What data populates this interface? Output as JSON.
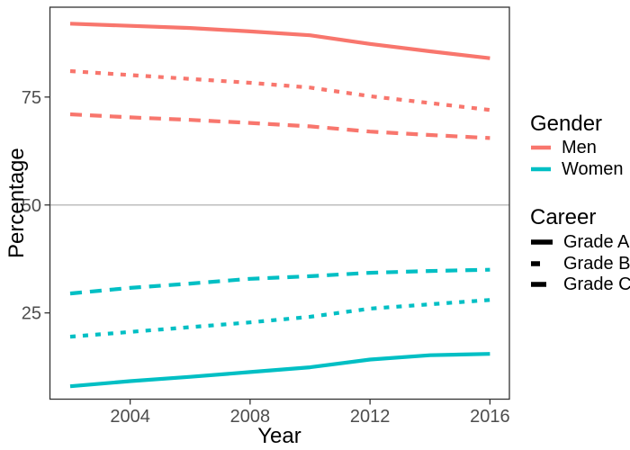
{
  "chart_data": {
    "type": "line",
    "xlabel": "Year",
    "ylabel": "Percentage",
    "x": [
      2002,
      2004,
      2006,
      2008,
      2010,
      2012,
      2014,
      2016
    ],
    "x_ticks": [
      2004,
      2008,
      2012,
      2016
    ],
    "y_ticks": [
      25,
      50,
      75
    ],
    "xlim": [
      2001.3,
      2016.7
    ],
    "ylim": [
      5,
      96
    ],
    "reference_line_y": 50,
    "grid": "off",
    "legend_position": "right",
    "series": [
      {
        "name": "Men Grade A",
        "gender": "Men",
        "career": "Grade A",
        "linetype": "solid",
        "color": "#F8766D",
        "values": [
          92,
          91.5,
          91,
          90.2,
          89.3,
          87.3,
          85.6,
          84
        ]
      },
      {
        "name": "Men Grade B",
        "gender": "Men",
        "career": "Grade B",
        "linetype": "short-dash",
        "color": "#F8766D",
        "values": [
          81,
          80.1,
          79.2,
          78.3,
          77.2,
          75.2,
          73.6,
          72
        ]
      },
      {
        "name": "Men Grade C",
        "gender": "Men",
        "career": "Grade C",
        "linetype": "long-dash",
        "color": "#F8766D",
        "values": [
          71,
          70.3,
          69.7,
          69,
          68.2,
          67,
          66.2,
          65.5
        ]
      },
      {
        "name": "Women Grade C",
        "gender": "Women",
        "career": "Grade C",
        "linetype": "long-dash",
        "color": "#00BFC4",
        "values": [
          29.5,
          30.8,
          31.8,
          32.9,
          33.5,
          34.3,
          34.7,
          35
        ]
      },
      {
        "name": "Women Grade B",
        "gender": "Women",
        "career": "Grade B",
        "linetype": "short-dash",
        "color": "#00BFC4",
        "values": [
          19.5,
          20.6,
          21.7,
          22.8,
          24.1,
          26,
          27,
          28
        ]
      },
      {
        "name": "Women Grade A",
        "gender": "Women",
        "career": "Grade A",
        "linetype": "solid",
        "color": "#00BFC4",
        "values": [
          8,
          9.2,
          10.2,
          11.3,
          12.4,
          14.2,
          15.2,
          15.5
        ]
      }
    ]
  },
  "axes": {
    "x_title": "Year",
    "y_title": "Percentage",
    "x_tick_labels": [
      "2004",
      "2008",
      "2012",
      "2016"
    ],
    "y_tick_labels": [
      "25",
      "50",
      "75"
    ]
  },
  "legend": {
    "gender": {
      "title": "Gender",
      "items": [
        {
          "label": "Men",
          "color": "#F8766D"
        },
        {
          "label": "Women",
          "color": "#00BFC4"
        }
      ]
    },
    "career": {
      "title": "Career",
      "items": [
        {
          "label": "Grade A",
          "linetype": "solid"
        },
        {
          "label": "Grade B",
          "linetype": "short-dash"
        },
        {
          "label": "Grade C",
          "linetype": "long-dash"
        }
      ]
    }
  },
  "colors": {
    "men": "#F8766D",
    "women": "#00BFC4",
    "reference_line": "#BEBEBE",
    "axis_text": "#4D4D4D",
    "panel_border": "#333333",
    "career_key": "#000000"
  }
}
